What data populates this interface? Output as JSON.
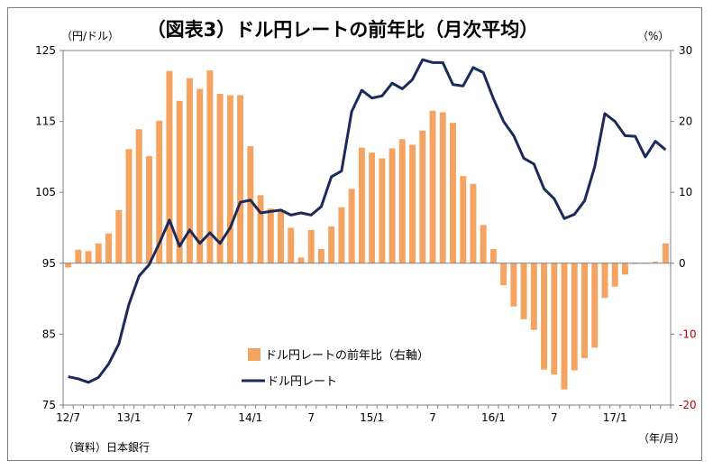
{
  "chart_data": {
    "type": "bar+line",
    "title": "（図表3）ドル円レートの前年比（月次平均）",
    "left_axis_unit": "（円/ドル）",
    "right_axis_unit": "（%）",
    "x_axis_unit": "（年/月）",
    "source": "（資料）日本銀行",
    "left_ylim": [
      75,
      125
    ],
    "left_ticks": [
      "75",
      "85",
      "95",
      "105",
      "115",
      "125"
    ],
    "right_ylim": [
      -20,
      30
    ],
    "right_ticks": [
      "-20",
      "-10",
      "0",
      "10",
      "20",
      "30"
    ],
    "x_tick_labels": [
      {
        "index": 0,
        "label": "12/7"
      },
      {
        "index": 6,
        "label": "13/1"
      },
      {
        "index": 12,
        "label": "7"
      },
      {
        "index": 18,
        "label": "14/1"
      },
      {
        "index": 24,
        "label": "7"
      },
      {
        "index": 30,
        "label": "15/1"
      },
      {
        "index": 36,
        "label": "7"
      },
      {
        "index": 42,
        "label": "16/1"
      },
      {
        "index": 48,
        "label": "7"
      },
      {
        "index": 54,
        "label": "17/1"
      }
    ],
    "months": [
      "2012/07",
      "2012/08",
      "2012/09",
      "2012/10",
      "2012/11",
      "2012/12",
      "2013/01",
      "2013/02",
      "2013/03",
      "2013/04",
      "2013/05",
      "2013/06",
      "2013/07",
      "2013/08",
      "2013/09",
      "2013/10",
      "2013/11",
      "2013/12",
      "2014/01",
      "2014/02",
      "2014/03",
      "2014/04",
      "2014/05",
      "2014/06",
      "2014/07",
      "2014/08",
      "2014/09",
      "2014/10",
      "2014/11",
      "2014/12",
      "2015/01",
      "2015/02",
      "2015/03",
      "2015/04",
      "2015/05",
      "2015/06",
      "2015/07",
      "2015/08",
      "2015/09",
      "2015/10",
      "2015/11",
      "2015/12",
      "2016/01",
      "2016/02",
      "2016/03",
      "2016/04",
      "2016/05",
      "2016/06",
      "2016/07",
      "2016/08",
      "2016/09",
      "2016/10",
      "2016/11",
      "2016/12",
      "2017/01",
      "2017/02",
      "2017/03",
      "2017/04",
      "2017/05",
      "2017/06"
    ],
    "series": [
      {
        "name": "ドル円レートの前年比（右軸）",
        "type": "bar",
        "axis": "right",
        "color": "#f4a460",
        "values": [
          -0.6,
          1.9,
          1.7,
          2.8,
          4.2,
          7.5,
          16.1,
          18.9,
          15.1,
          20.1,
          27.1,
          22.9,
          26.1,
          24.6,
          27.2,
          23.9,
          23.7,
          23.7,
          16.5,
          9.6,
          7.7,
          7.3,
          5.0,
          0.8,
          4.7,
          2.0,
          5.2,
          7.9,
          10.5,
          16.3,
          15.6,
          14.8,
          16.2,
          17.5,
          16.7,
          18.7,
          21.5,
          21.3,
          19.8,
          12.3,
          11.2,
          5.4,
          2.0,
          -3.1,
          -6.1,
          -7.9,
          -9.4,
          -15.0,
          -15.7,
          -17.8,
          -15.1,
          -13.4,
          -11.9,
          -4.9,
          -3.3,
          -1.6,
          0.0,
          -0.1,
          0.2,
          2.8
        ]
      },
      {
        "name": "ドル円レート",
        "type": "line",
        "axis": "left",
        "color": "#1a2a5a",
        "values": [
          79.0,
          78.7,
          78.2,
          78.9,
          80.8,
          83.6,
          89.2,
          93.2,
          94.8,
          97.8,
          101.1,
          97.4,
          99.7,
          97.8,
          99.3,
          97.8,
          100.0,
          103.6,
          103.9,
          102.1,
          102.3,
          102.5,
          101.8,
          102.1,
          101.8,
          103.0,
          107.2,
          108.0,
          116.4,
          119.4,
          118.3,
          118.6,
          120.4,
          119.6,
          120.9,
          123.7,
          123.3,
          123.3,
          120.2,
          120.0,
          122.6,
          121.9,
          118.2,
          115.0,
          113.0,
          109.8,
          109.0,
          105.5,
          104.1,
          101.3,
          101.9,
          103.8,
          108.6,
          116.1,
          115.0,
          113.0,
          112.9,
          110.0,
          112.2,
          111.0
        ]
      }
    ]
  },
  "legend": {
    "bar_label": "ドル円レートの前年比（右軸）",
    "line_label": "ドル円レート"
  },
  "colors": {
    "bar": "#f4a460",
    "line": "#1a2a5a",
    "negative_tick": "#c00000",
    "axis": "#7f7f7f"
  }
}
